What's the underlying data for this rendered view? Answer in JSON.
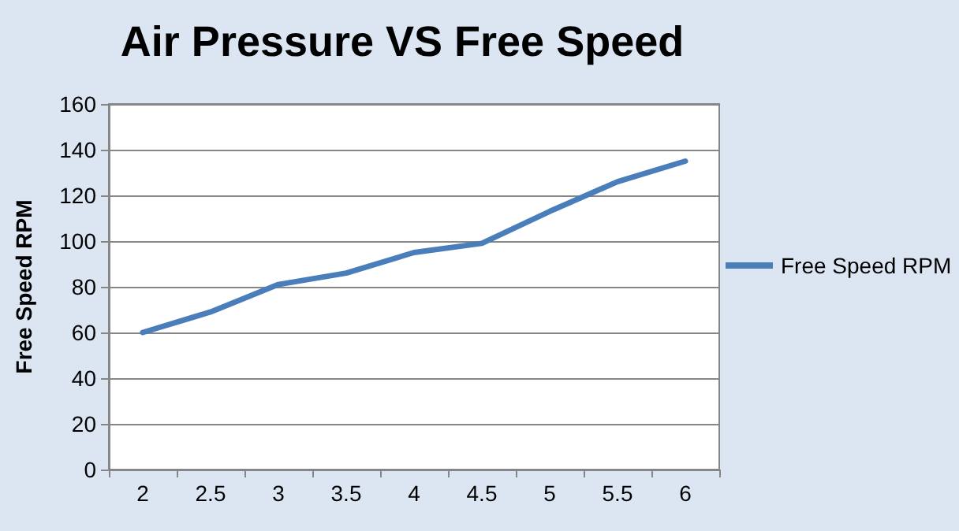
{
  "chart_data": {
    "type": "line",
    "title": "Air Pressure VS Free Speed",
    "ylabel": "Free Speed RPM",
    "categories": [
      "2",
      "2.5",
      "3",
      "3.5",
      "4",
      "4.5",
      "5",
      "5.5",
      "6"
    ],
    "series": [
      {
        "name": "Free Speed RPM",
        "color": "#4a7ebb",
        "values": [
          60,
          69,
          81,
          86,
          95,
          99,
          113,
          126,
          135
        ]
      }
    ],
    "ylim": [
      0,
      160
    ],
    "yticks": [
      0,
      20,
      40,
      60,
      80,
      100,
      120,
      140,
      160
    ],
    "grid": "y",
    "legend": "right",
    "marker": "none"
  }
}
